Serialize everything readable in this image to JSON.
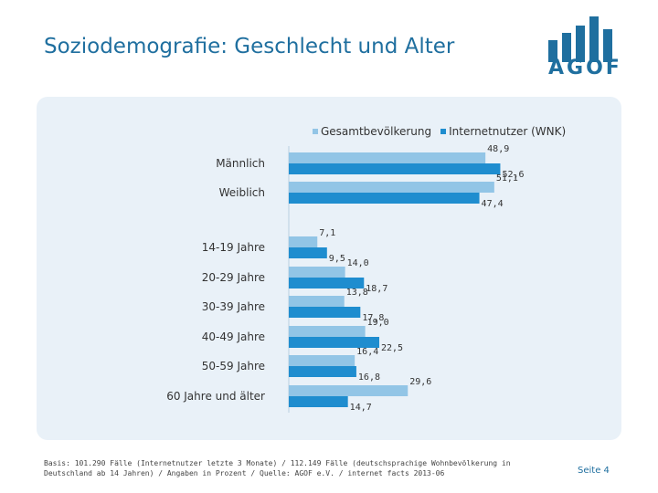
{
  "header": {
    "title": "Soziodemografie: Geschlecht und Alter"
  },
  "logo": {
    "text": "AGOF",
    "color": "#1f6f9f",
    "icon": "bar-chart-logo-icon"
  },
  "chart_data": {
    "type": "bar",
    "orientation": "horizontal",
    "categories": [
      "Männlich",
      "Weiblich",
      "14-19 Jahre",
      "20-29 Jahre",
      "30-39 Jahre",
      "40-49 Jahre",
      "50-59 Jahre",
      "60 Jahre und älter"
    ],
    "series": [
      {
        "name": "Gesamtbevölkerung",
        "color": "#92c5e6",
        "values": [
          48.9,
          51.1,
          7.1,
          14.0,
          13.8,
          19.0,
          16.4,
          29.6
        ],
        "labels": [
          "48,9",
          "51,1",
          "7,1",
          "14,0",
          "13,8",
          "19,0",
          "16,4",
          "29,6"
        ]
      },
      {
        "name": "Internetnutzer (WNK)",
        "color": "#1f8dcf",
        "values": [
          52.6,
          47.4,
          9.5,
          18.7,
          17.8,
          22.5,
          16.8,
          14.7
        ],
        "labels": [
          "52,6",
          "47,4",
          "9,5",
          "18,7",
          "17,8",
          "22,5",
          "16,8",
          "14,7"
        ]
      }
    ],
    "xlim": [
      0,
      60
    ],
    "legend_position": "top"
  },
  "footer": {
    "note": "Basis: 101.290 Fälle (Internetnutzer letzte 3 Monate) / 112.149 Fälle (deutschsprachige Wohnbevölkerung in Deutschland ab 14 Jahren) / Angaben in Prozent / Quelle: AGOF e.V. / internet facts 2013-06",
    "page": "Seite 4"
  }
}
